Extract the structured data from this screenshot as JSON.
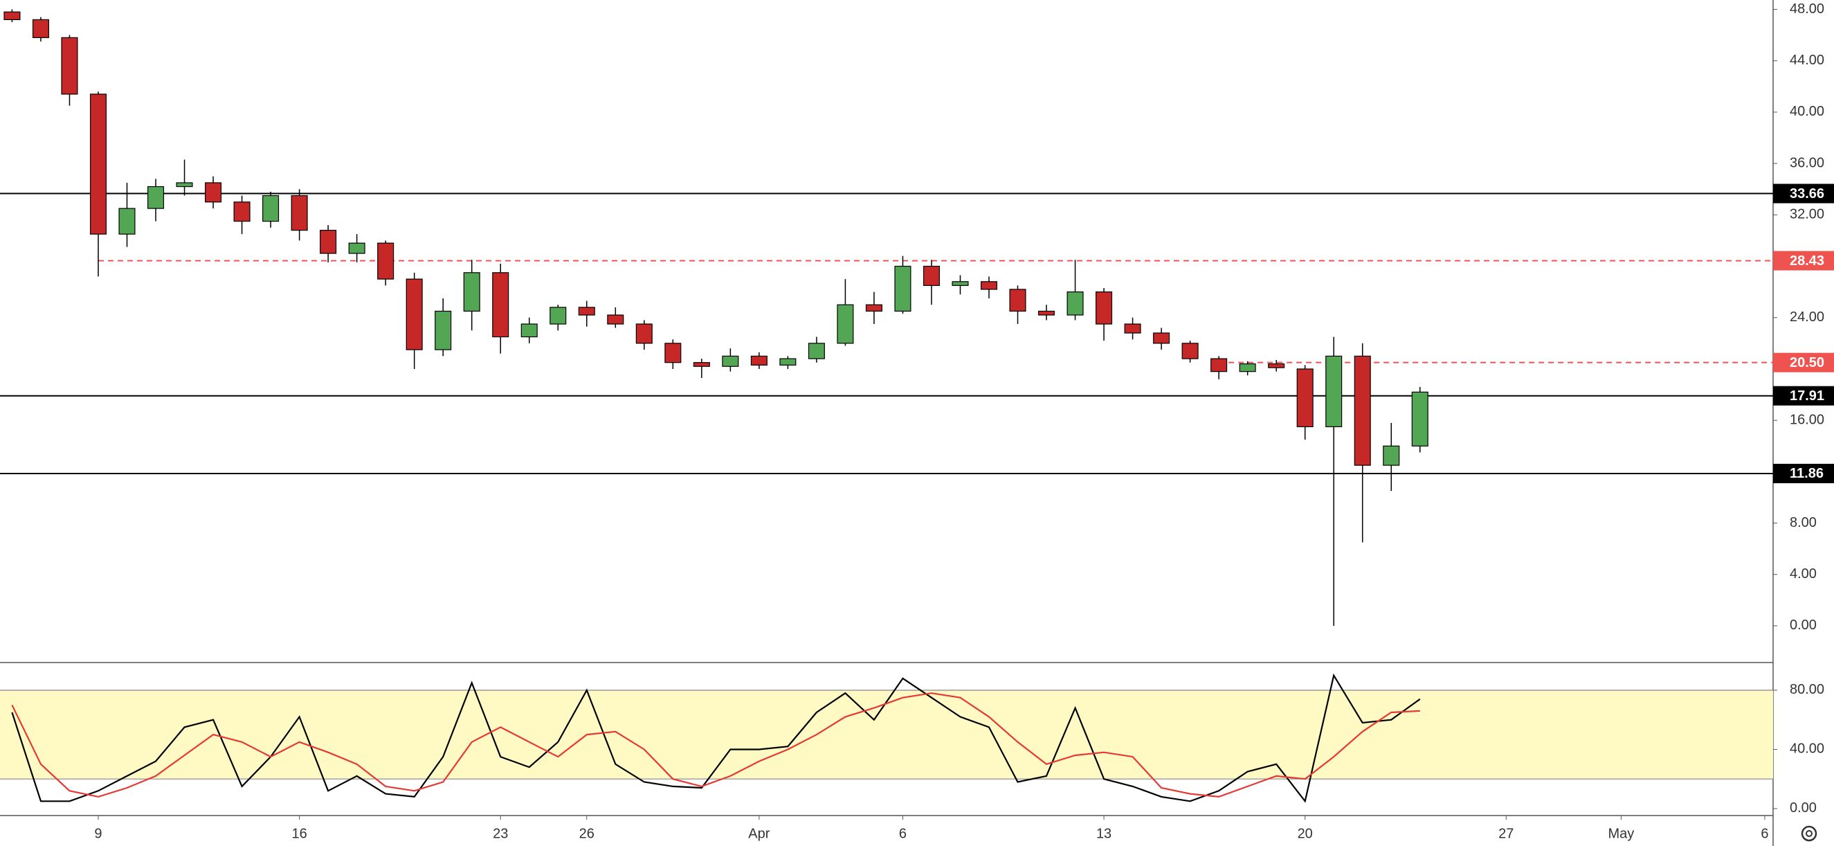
{
  "chart_data": [
    {
      "type": "candlestick",
      "x": [
        6,
        7,
        8,
        9,
        10,
        11,
        12,
        13,
        14,
        15,
        16,
        17,
        18,
        19,
        20,
        21,
        22,
        23,
        24,
        25,
        26,
        27,
        28,
        29,
        30,
        31,
        32,
        33,
        34,
        35,
        36,
        37,
        38,
        39,
        40,
        41,
        42,
        43,
        44,
        45,
        46,
        47,
        48,
        49,
        50,
        51,
        52,
        53,
        54,
        55
      ],
      "open": [
        47.8,
        47.2,
        45.8,
        41.4,
        30.5,
        32.5,
        34.2,
        34.5,
        33,
        31.5,
        33.5,
        30.8,
        29,
        29.8,
        27,
        21.5,
        24.5,
        27.5,
        22.5,
        23.5,
        24.8,
        24.2,
        23.5,
        22,
        20.5,
        20.2,
        21,
        20.3,
        20.8,
        22,
        25,
        24.5,
        28,
        26.5,
        26.8,
        26.2,
        24.5,
        24.2,
        26,
        23.5,
        22.8,
        22,
        20.8,
        19.8,
        20.4,
        20,
        15.5,
        21,
        12.5,
        14
      ],
      "high": [
        48,
        47.4,
        46,
        41.6,
        34.5,
        34.8,
        36.3,
        35,
        33.5,
        33.8,
        34,
        31.2,
        30.5,
        30,
        27.5,
        25.5,
        28.5,
        28.2,
        24,
        25,
        25.3,
        24.8,
        23.8,
        22.3,
        20.8,
        21.6,
        21.3,
        21,
        22.5,
        27,
        26,
        28.8,
        28.5,
        27.3,
        27.2,
        26.5,
        25,
        28.5,
        26.3,
        24,
        23.2,
        22.2,
        21,
        20.6,
        20.7,
        20.3,
        22.5,
        22,
        15.8,
        18.6
      ],
      "low": [
        47,
        45.5,
        40.5,
        27.2,
        29.5,
        31.5,
        33.5,
        32.5,
        30.5,
        31,
        30,
        28.3,
        28.3,
        26.5,
        20,
        21,
        23,
        21.2,
        22,
        23,
        23.3,
        23.2,
        21.5,
        20,
        19.3,
        19.8,
        20,
        20,
        20.5,
        21.8,
        23.5,
        24.3,
        25,
        25.8,
        25.5,
        23.5,
        23.8,
        23.8,
        22.2,
        22.3,
        21.5,
        20.5,
        19.2,
        19.5,
        19.8,
        14.5,
        0,
        6.5,
        10.5,
        13.5
      ],
      "close": [
        47.2,
        45.8,
        41.4,
        30.5,
        32.5,
        34.2,
        34.5,
        33,
        31.5,
        33.5,
        30.8,
        29,
        29.8,
        27,
        21.5,
        24.5,
        27.5,
        22.5,
        23.5,
        24.8,
        24.2,
        23.5,
        22,
        20.5,
        20.2,
        21,
        20.3,
        20.8,
        22,
        25,
        24.5,
        28,
        26.5,
        26.8,
        26.2,
        24.5,
        24.2,
        26,
        23.5,
        22.8,
        22,
        20.8,
        19.8,
        20.4,
        20.1,
        15.5,
        21,
        12.5,
        14,
        18.2
      ],
      "up_color": "#53a653",
      "down_color": "#c62828",
      "border_color": "#000000",
      "xlim": [
        5.58,
        67.29
      ],
      "ylim": [
        -2.86,
        48.73
      ],
      "yticks": [
        {
          "value": 0,
          "label": "0.00"
        },
        {
          "value": 4,
          "label": "4.00"
        },
        {
          "value": 8,
          "label": "8.00"
        },
        {
          "value": 16,
          "label": "16.00"
        },
        {
          "value": 24,
          "label": "24.00"
        },
        {
          "value": 32,
          "label": "32.00"
        },
        {
          "value": 36,
          "label": "36.00"
        },
        {
          "value": 40,
          "label": "40.00"
        },
        {
          "value": 44,
          "label": "44.00"
        },
        {
          "value": 48,
          "label": "48.00"
        }
      ],
      "hlines": [
        {
          "value": 33.66,
          "color": "#000000",
          "dash": false
        },
        {
          "value": 28.43,
          "color": "#ef5350",
          "dash": true,
          "start": 9
        },
        {
          "value": 20.5,
          "label": "20.50",
          "color": "#ef5350",
          "dash": true,
          "start": 48
        },
        {
          "value": 17.91,
          "color": "#000000",
          "dash": false
        },
        {
          "value": 11.86,
          "color": "#000000",
          "dash": false
        }
      ]
    },
    {
      "type": "line",
      "x": [
        6,
        7,
        8,
        9,
        10,
        11,
        12,
        13,
        14,
        15,
        16,
        17,
        18,
        19,
        20,
        21,
        22,
        23,
        24,
        25,
        26,
        27,
        28,
        29,
        30,
        31,
        32,
        33,
        34,
        35,
        36,
        37,
        38,
        39,
        40,
        41,
        42,
        43,
        44,
        45,
        46,
        47,
        48,
        49,
        50,
        51,
        52,
        53,
        54,
        55
      ],
      "series": [
        {
          "color": "#000000",
          "values": [
            65,
            5,
            5,
            12,
            22,
            32,
            55,
            60,
            15,
            35,
            62,
            12,
            22,
            10,
            8,
            35,
            85,
            35,
            28,
            45,
            80,
            30,
            18,
            15,
            14,
            40,
            40,
            42,
            65,
            78,
            60,
            88,
            75,
            62,
            55,
            18,
            22,
            68,
            20,
            15,
            8,
            5,
            12,
            25,
            30,
            5,
            90,
            58,
            60,
            74
          ]
        },
        {
          "color": "#e53935",
          "values": [
            70,
            30,
            12,
            8,
            14,
            22,
            36,
            50,
            45,
            35,
            45,
            38,
            30,
            15,
            12,
            18,
            45,
            55,
            45,
            35,
            50,
            52,
            40,
            20,
            15,
            22,
            32,
            40,
            50,
            62,
            68,
            75,
            78,
            75,
            62,
            45,
            30,
            36,
            38,
            35,
            14,
            10,
            8,
            15,
            22,
            20,
            35,
            52,
            65,
            66
          ]
        }
      ],
      "band": [
        20,
        80
      ],
      "band_color": "#fff9c4",
      "xlim": [
        5.58,
        67.29
      ],
      "ylim": [
        -4.7,
        98.7
      ],
      "yticks": [
        {
          "value": 0,
          "label": "0.00"
        },
        {
          "value": 40,
          "label": "40.00"
        },
        {
          "value": 80,
          "label": "80.00"
        }
      ],
      "xticks": [
        9,
        16,
        23,
        26,
        {
          "value": 32,
          "label": "Apr"
        },
        {
          "value": 37,
          "label": "6"
        },
        {
          "value": 44,
          "label": "13"
        },
        {
          "value": 51,
          "label": "20"
        },
        {
          "value": 58,
          "label": "27"
        },
        {
          "value": 62,
          "label": "May"
        },
        {
          "value": 67,
          "label": "6"
        }
      ]
    }
  ]
}
